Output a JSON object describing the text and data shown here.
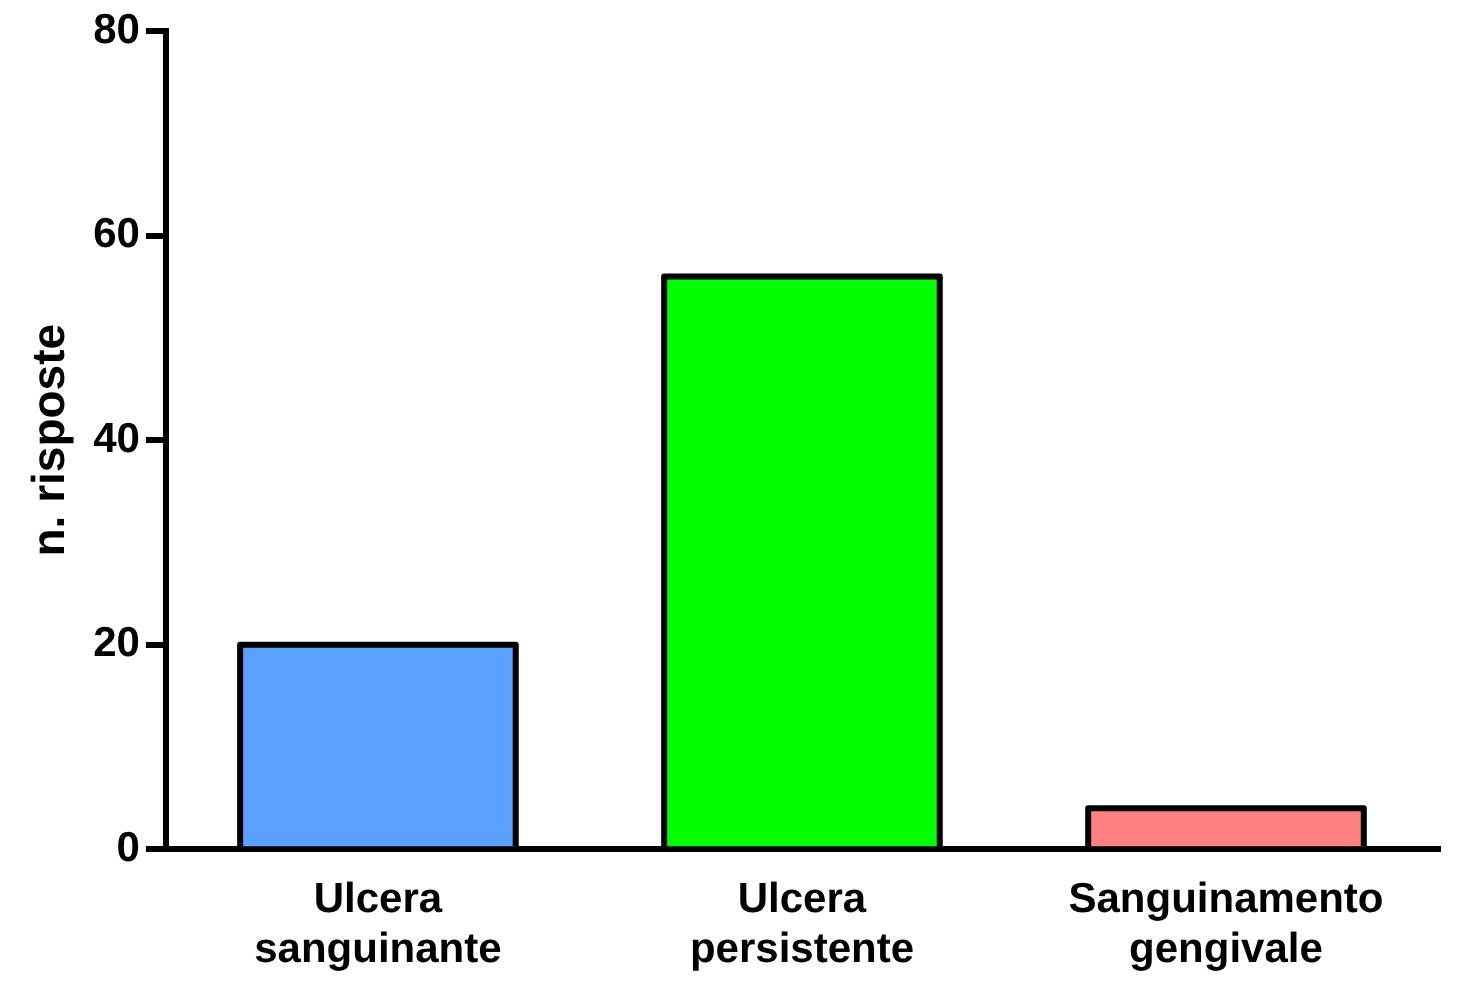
{
  "chart_data": {
    "type": "bar",
    "ylabel": "n. risposte",
    "categories": [
      "Ulcera sanguinante",
      "Ulcera persistente",
      "Sanguinamento gengivale"
    ],
    "values": [
      20,
      56,
      4
    ],
    "colors": [
      "#5aa0ff",
      "#00ff00",
      "#ff8080"
    ],
    "ylim": [
      0,
      80
    ],
    "yticks": [
      0,
      20,
      40,
      60,
      80
    ],
    "grid": false,
    "legend": false
  }
}
